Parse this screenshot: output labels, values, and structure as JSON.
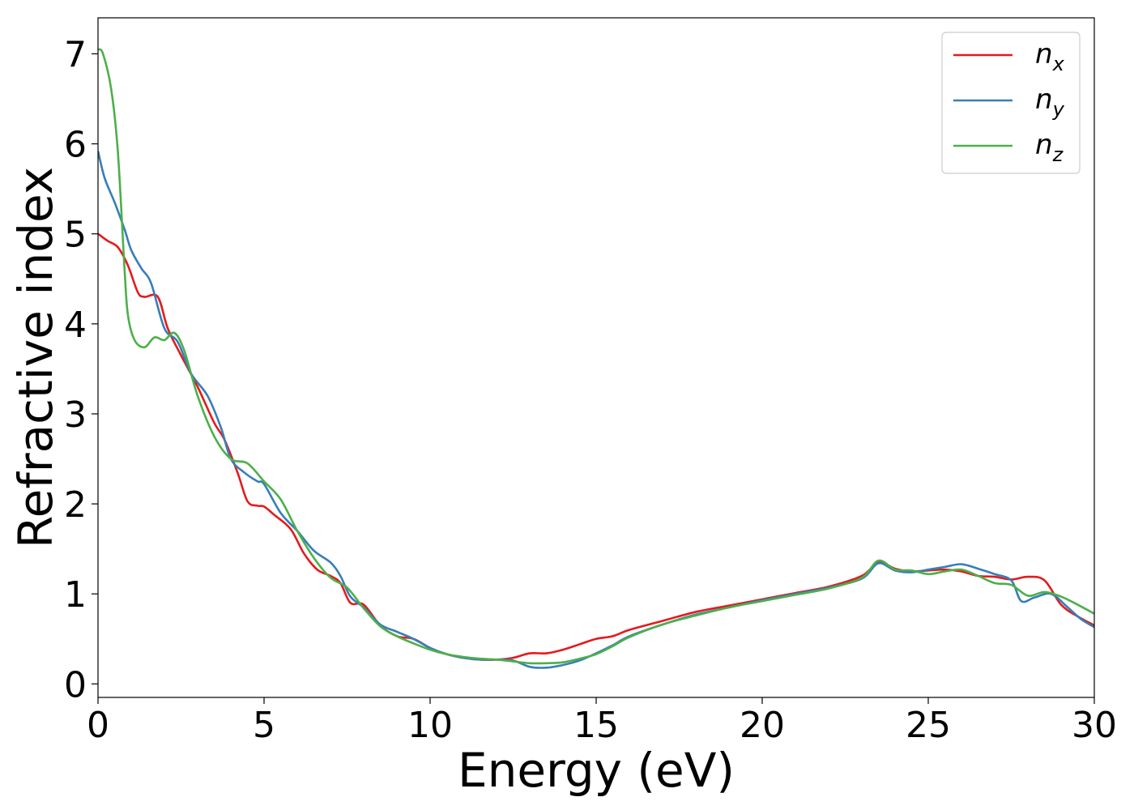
{
  "chart_data": {
    "type": "line",
    "xlabel": "Energy (eV)",
    "ylabel": "Refractive index",
    "xlim": [
      0,
      30
    ],
    "ylim": [
      -0.15,
      7.4
    ],
    "xticks": [
      0,
      5,
      10,
      15,
      20,
      25,
      30
    ],
    "yticks": [
      0,
      1,
      2,
      3,
      4,
      5,
      6,
      7
    ],
    "grid": false,
    "legend_position": "top-right",
    "colors": [
      "#e41a1c",
      "#377eb8",
      "#4daf4a"
    ],
    "series": [
      {
        "name": "n",
        "subscript": "x",
        "color": "#e41a1c",
        "x": [
          0,
          0.3,
          0.6,
          0.9,
          1.2,
          1.4,
          1.8,
          2.1,
          2.5,
          3.0,
          3.5,
          3.8,
          4.2,
          4.5,
          4.8,
          5.0,
          5.3,
          5.8,
          6.2,
          6.6,
          7.0,
          7.3,
          7.6,
          8.0,
          8.5,
          9.0,
          9.5,
          10.0,
          10.5,
          11.0,
          11.5,
          12.0,
          12.5,
          13.0,
          13.5,
          14.0,
          14.5,
          15.0,
          15.5,
          16.0,
          17.0,
          18.0,
          19.0,
          20.0,
          21.0,
          22.0,
          23.0,
          23.5,
          24.0,
          24.5,
          25.0,
          25.5,
          26.0,
          26.5,
          27.0,
          27.5,
          28.0,
          28.5,
          29.0,
          29.5,
          30.0
        ],
        "y": [
          5.0,
          4.92,
          4.85,
          4.65,
          4.35,
          4.3,
          4.3,
          3.95,
          3.65,
          3.3,
          2.9,
          2.72,
          2.35,
          2.03,
          1.98,
          1.97,
          1.88,
          1.72,
          1.45,
          1.27,
          1.2,
          1.12,
          0.9,
          0.88,
          0.65,
          0.53,
          0.5,
          0.4,
          0.33,
          0.29,
          0.27,
          0.27,
          0.29,
          0.34,
          0.34,
          0.38,
          0.44,
          0.5,
          0.53,
          0.6,
          0.7,
          0.8,
          0.87,
          0.94,
          1.01,
          1.08,
          1.2,
          1.35,
          1.28,
          1.25,
          1.26,
          1.27,
          1.25,
          1.2,
          1.19,
          1.16,
          1.19,
          1.15,
          0.88,
          0.75,
          0.65
        ]
      },
      {
        "name": "n",
        "subscript": "y",
        "color": "#377eb8",
        "x": [
          0,
          0.2,
          0.5,
          0.8,
          1.0,
          1.3,
          1.6,
          2.0,
          2.4,
          2.8,
          3.3,
          3.7,
          4.0,
          4.4,
          4.8,
          5.0,
          5.5,
          6.0,
          6.5,
          7.0,
          7.3,
          7.6,
          8.0,
          8.5,
          9.0,
          9.5,
          10.0,
          10.5,
          11.0,
          11.5,
          12.0,
          12.5,
          13.0,
          13.5,
          14.0,
          14.5,
          15.0,
          15.5,
          16.0,
          17.0,
          18.0,
          19.0,
          20.0,
          21.0,
          22.0,
          23.0,
          23.5,
          24.0,
          24.5,
          25.0,
          25.5,
          26.0,
          26.5,
          27.0,
          27.5,
          27.8,
          28.2,
          28.7,
          29.2,
          29.6,
          30.0
        ],
        "y": [
          5.92,
          5.62,
          5.35,
          5.05,
          4.82,
          4.62,
          4.45,
          3.95,
          3.8,
          3.45,
          3.2,
          2.85,
          2.5,
          2.35,
          2.25,
          2.22,
          1.9,
          1.7,
          1.48,
          1.35,
          1.2,
          0.97,
          0.85,
          0.66,
          0.58,
          0.5,
          0.4,
          0.33,
          0.29,
          0.27,
          0.27,
          0.26,
          0.19,
          0.18,
          0.21,
          0.26,
          0.34,
          0.43,
          0.53,
          0.66,
          0.77,
          0.85,
          0.93,
          1.0,
          1.07,
          1.17,
          1.34,
          1.26,
          1.24,
          1.27,
          1.3,
          1.33,
          1.28,
          1.22,
          1.15,
          0.92,
          0.96,
          1.0,
          0.85,
          0.72,
          0.63
        ]
      },
      {
        "name": "n",
        "subscript": "z",
        "color": "#4daf4a",
        "x": [
          0,
          0.15,
          0.4,
          0.6,
          0.8,
          0.9,
          1.1,
          1.4,
          1.7,
          2.0,
          2.3,
          2.6,
          3.0,
          3.5,
          4.0,
          4.5,
          5.0,
          5.5,
          6.0,
          6.5,
          7.0,
          7.5,
          8.0,
          8.5,
          9.0,
          9.5,
          10.0,
          10.5,
          11.0,
          11.5,
          12.0,
          12.5,
          13.0,
          13.5,
          14.0,
          14.5,
          15.0,
          15.5,
          16.0,
          17.0,
          18.0,
          19.0,
          20.0,
          21.0,
          22.0,
          23.0,
          23.5,
          24.0,
          24.5,
          25.0,
          25.5,
          26.0,
          26.5,
          27.0,
          27.5,
          28.0,
          28.5,
          29.0,
          29.5,
          30.0
        ],
        "y": [
          7.05,
          7.0,
          6.6,
          5.9,
          4.6,
          4.1,
          3.82,
          3.74,
          3.85,
          3.82,
          3.9,
          3.7,
          3.2,
          2.75,
          2.5,
          2.45,
          2.25,
          2.05,
          1.7,
          1.4,
          1.18,
          1.07,
          0.84,
          0.64,
          0.53,
          0.45,
          0.38,
          0.33,
          0.3,
          0.28,
          0.27,
          0.25,
          0.23,
          0.23,
          0.24,
          0.28,
          0.33,
          0.42,
          0.52,
          0.66,
          0.76,
          0.85,
          0.92,
          0.99,
          1.06,
          1.18,
          1.37,
          1.27,
          1.26,
          1.22,
          1.25,
          1.27,
          1.2,
          1.12,
          1.1,
          0.98,
          1.02,
          0.97,
          0.88,
          0.78
        ]
      }
    ]
  }
}
